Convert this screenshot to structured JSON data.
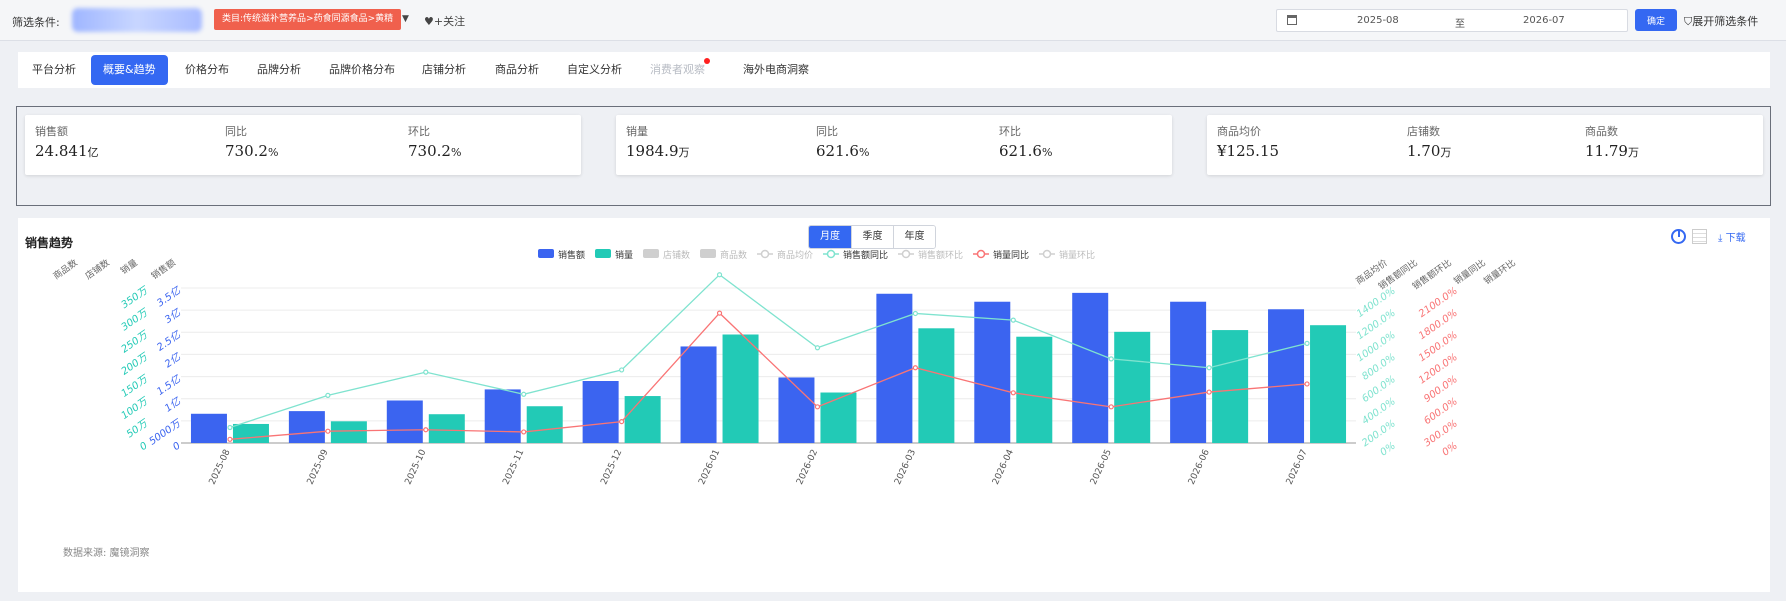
{
  "filter": {
    "label": "筛选条件:",
    "category": "类目:传统滋补营养品>药食同源食品>黄精",
    "follow": "+关注",
    "date_start": "2025-08",
    "date_sep": "至",
    "date_end": "2026-07",
    "confirm": "确定",
    "expand": "展开筛选条件"
  },
  "tabs": [
    "平台分析",
    "概要&趋势",
    "价格分布",
    "品牌分析",
    "品牌价格分布",
    "店铺分析",
    "商品分析",
    "自定义分析",
    "消费者观察",
    "海外电商洞察"
  ],
  "active_tab": "概要&趋势",
  "cards": [
    [
      {
        "label": "销售额",
        "value": "24.841",
        "unit": "亿"
      },
      {
        "label": "同比",
        "value": "730.2",
        "unit": "%"
      },
      {
        "label": "环比",
        "value": "730.2",
        "unit": "%"
      }
    ],
    [
      {
        "label": "销量",
        "value": "1984.9",
        "unit": "万"
      },
      {
        "label": "同比",
        "value": "621.6",
        "unit": "%"
      },
      {
        "label": "环比",
        "value": "621.6",
        "unit": "%"
      }
    ],
    [
      {
        "label": "商品均价",
        "value": "¥125.15",
        "unit": ""
      },
      {
        "label": "店铺数",
        "value": "1.70",
        "unit": "万"
      },
      {
        "label": "商品数",
        "value": "11.79",
        "unit": "万"
      }
    ]
  ],
  "panel": {
    "title": "销售趋势",
    "granularity": [
      "月度",
      "季度",
      "年度"
    ],
    "active_granularity": "月度",
    "download": "下载",
    "source": "数据来源: 魔镜洞察"
  },
  "colors": {
    "sales": "#3b64f0",
    "volume": "#22cab6",
    "sales_yoy": "#7fe3cf",
    "volume_yoy": "#f97475",
    "disabled": "#cfcfcf"
  },
  "chart_data": {
    "type": "bar",
    "categories": [
      "2025-08",
      "2025-09",
      "2025-10",
      "2025-11",
      "2025-12",
      "2026-01",
      "2026-02",
      "2026-03",
      "2026-04",
      "2026-05",
      "2026-06",
      "2026-07"
    ],
    "series": [
      {
        "name": "销售额",
        "type": "bar",
        "axis": "销售额",
        "values": [
          0.66,
          0.72,
          0.96,
          1.21,
          1.4,
          2.18,
          1.48,
          3.37,
          3.19,
          3.39,
          3.19,
          3.02
        ]
      },
      {
        "name": "销量",
        "type": "bar",
        "axis": "销量",
        "values": [
          43,
          49,
          65,
          83,
          106,
          245,
          114,
          259,
          240,
          251,
          255,
          266
        ]
      },
      {
        "name": "店铺数",
        "type": "bar",
        "disabled": true
      },
      {
        "name": "商品数",
        "type": "bar",
        "disabled": true
      },
      {
        "name": "商品均价",
        "type": "line",
        "disabled": true
      },
      {
        "name": "销售额同比",
        "type": "line",
        "axis": "销售额同比",
        "values": [
          140,
          430,
          640,
          440,
          660,
          1520,
          860,
          1170,
          1110,
          760,
          680,
          900
        ]
      },
      {
        "name": "销售额环比",
        "type": "line",
        "disabled": true
      },
      {
        "name": "销量同比",
        "type": "line",
        "axis": "销量同比",
        "values": [
          50,
          160,
          180,
          150,
          290,
          1760,
          490,
          1020,
          680,
          490,
          690,
          800
        ]
      },
      {
        "name": "销量环比",
        "type": "line",
        "disabled": true
      }
    ],
    "axes": {
      "left_names": [
        "商品数",
        "店铺数",
        "销量",
        "销售额"
      ],
      "right_names": [
        "商品均价",
        "销售额同比",
        "销售额环比",
        "销量同比",
        "销量环比"
      ],
      "sales_ticks": [
        "0",
        "5000万",
        "1亿",
        "1.5亿",
        "2亿",
        "2.5亿",
        "3亿",
        "3.5亿"
      ],
      "sales_range": [
        0,
        3.5
      ],
      "volume_ticks": [
        "0",
        "50万",
        "100万",
        "150万",
        "200万",
        "250万",
        "300万",
        "350万"
      ],
      "volume_range": [
        0,
        350
      ],
      "sales_yoy_ticks": [
        "0%",
        "200.0%",
        "400.0%",
        "600.0%",
        "800.0%",
        "1000.0%",
        "1200.0%",
        "1400.0%"
      ],
      "sales_yoy_range": [
        0,
        1400
      ],
      "volume_yoy_ticks": [
        "0%",
        "300.0%",
        "600.0%",
        "900.0%",
        "1200.0%",
        "1500.0%",
        "1800.0%",
        "2100.0%"
      ],
      "volume_yoy_range": [
        0,
        2100
      ]
    },
    "legend_position": "top-center",
    "grid": true
  }
}
